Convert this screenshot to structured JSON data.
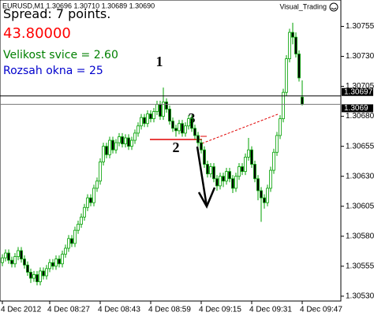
{
  "chart_data": {
    "type": "candlestick",
    "header": "EURUSD,M1  1.30696 1.30710 1.30689 1.30690",
    "watermark": "Visual_Trading",
    "info": [
      "Spread: 7 points.",
      "43.80000",
      "Velikost svice = 2.60",
      "Rozsah okna = 25"
    ],
    "info_colors": [
      "#000000",
      "#ff0000",
      "#008000",
      "#0000cc"
    ],
    "annotations": [
      "1",
      "2",
      "3"
    ],
    "bid": 1.3069,
    "ask": 1.30697,
    "up_color": "#ffffff",
    "down_color": "#000000",
    "wick_color": "#00a000",
    "categories": [
      "4 Dec 2012",
      null,
      null,
      null,
      null,
      null,
      null,
      null,
      null,
      null,
      null,
      null,
      null,
      null,
      null,
      "4 Dec 08:27",
      null,
      null,
      null,
      null,
      null,
      null,
      null,
      null,
      null,
      null,
      null,
      null,
      null,
      null,
      null,
      "4 Dec 08:43",
      null,
      null,
      null,
      null,
      null,
      null,
      null,
      null,
      null,
      null,
      null,
      null,
      null,
      null,
      null,
      "4 Dec 08:59",
      null,
      null,
      null,
      null,
      null,
      null,
      null,
      null,
      null,
      null,
      null,
      null,
      null,
      null,
      null,
      "4 Dec 09:15",
      null,
      null,
      null,
      null,
      null,
      null,
      null,
      null,
      null,
      null,
      null,
      null,
      null,
      null,
      null,
      "4 Dec 09:31",
      null,
      null,
      null,
      null,
      null,
      null,
      null,
      null,
      null,
      null,
      null,
      null,
      null,
      null,
      null,
      "4 Dec 09:47"
    ],
    "open": [
      1.30558,
      1.30562,
      1.30566,
      1.3056,
      1.30557,
      1.30563,
      1.30568,
      1.30561,
      1.30556,
      1.3055,
      1.30545,
      1.30548,
      1.30542,
      1.30551,
      1.30547,
      1.30553,
      1.30558,
      1.30555,
      1.30561,
      1.30557,
      1.30565,
      1.3057,
      1.30578,
      1.30574,
      1.30585,
      1.3059,
      1.30596,
      1.30604,
      1.30612,
      1.30608,
      1.3062,
      1.30626,
      1.30642,
      1.30655,
      1.30648,
      1.3066,
      1.30652,
      1.30658,
      1.30663,
      1.30657,
      1.30662,
      1.30655,
      1.3066,
      1.30666,
      1.30672,
      1.30679,
      1.30674,
      1.30682,
      1.30678,
      1.30684,
      1.3069,
      1.3068,
      1.30692,
      1.30686,
      1.30676,
      1.3067,
      1.30668,
      1.30674,
      1.30666,
      1.30672,
      1.30678,
      1.3067,
      1.30664,
      1.30658,
      1.30652,
      1.3064,
      1.30632,
      1.30638,
      1.30628,
      1.30622,
      1.3063,
      1.30626,
      1.30634,
      1.30628,
      1.3062,
      1.3063,
      1.30638,
      1.30634,
      1.30646,
      1.30652,
      1.3064,
      1.30628,
      1.30618,
      1.30612,
      1.30608,
      1.3062,
      1.30635,
      1.3065,
      1.30664,
      1.30678,
      1.307,
      1.30728,
      1.3075,
      1.30746,
      1.30732,
      1.30696
    ],
    "high": [
      1.30565,
      1.30569,
      1.30569,
      1.30563,
      1.30566,
      1.30571,
      1.30571,
      1.30564,
      1.30559,
      1.30553,
      1.30551,
      1.30551,
      1.30554,
      1.30554,
      1.30556,
      1.30561,
      1.30561,
      1.30564,
      1.30564,
      1.30568,
      1.30573,
      1.30581,
      1.30581,
      1.30588,
      1.30593,
      1.30599,
      1.30607,
      1.30615,
      1.30615,
      1.30623,
      1.30629,
      1.30645,
      1.30658,
      1.30658,
      1.30663,
      1.30663,
      1.30661,
      1.30666,
      1.30666,
      1.30665,
      1.30665,
      1.30663,
      1.30669,
      1.30675,
      1.30682,
      1.30682,
      1.30685,
      1.30685,
      1.30687,
      1.30693,
      1.30693,
      1.30704,
      1.30695,
      1.30689,
      1.30679,
      1.30673,
      1.30677,
      1.30677,
      1.30675,
      1.30681,
      1.30681,
      1.30673,
      1.30667,
      1.30661,
      1.30655,
      1.30643,
      1.30641,
      1.30641,
      1.30631,
      1.30633,
      1.30633,
      1.30637,
      1.30637,
      1.30631,
      1.30633,
      1.30641,
      1.30641,
      1.30649,
      1.30662,
      1.30655,
      1.30643,
      1.30631,
      1.30621,
      1.30615,
      1.30623,
      1.30638,
      1.30653,
      1.30667,
      1.30681,
      1.30703,
      1.30731,
      1.30753,
      1.30758,
      1.3075,
      1.30735,
      1.3071
    ],
    "low": [
      1.30555,
      1.30559,
      1.30557,
      1.30554,
      1.30554,
      1.3056,
      1.30558,
      1.30553,
      1.30547,
      1.30541,
      1.30542,
      1.30539,
      1.30539,
      1.30544,
      1.30544,
      1.3055,
      1.30552,
      1.30552,
      1.30554,
      1.30554,
      1.30562,
      1.30567,
      1.30571,
      1.30571,
      1.30582,
      1.30587,
      1.30593,
      1.30601,
      1.30605,
      1.30605,
      1.30617,
      1.30623,
      1.30639,
      1.30645,
      1.30645,
      1.30649,
      1.30649,
      1.30655,
      1.30654,
      1.30654,
      1.30652,
      1.30652,
      1.30657,
      1.30663,
      1.30669,
      1.30671,
      1.30671,
      1.30675,
      1.30675,
      1.30681,
      1.30677,
      1.30677,
      1.30683,
      1.30673,
      1.30667,
      1.30663,
      1.30665,
      1.30663,
      1.30663,
      1.30669,
      1.30667,
      1.30661,
      1.30655,
      1.30649,
      1.30637,
      1.30629,
      1.30629,
      1.30625,
      1.30618,
      1.30619,
      1.30621,
      1.30623,
      1.30625,
      1.30616,
      1.30617,
      1.30627,
      1.30631,
      1.30631,
      1.30643,
      1.30637,
      1.30625,
      1.3061,
      1.30592,
      1.30603,
      1.30605,
      1.30617,
      1.30632,
      1.30647,
      1.30661,
      1.30675,
      1.30697,
      1.30725,
      1.3074,
      1.30729,
      1.30709,
      1.30689
    ],
    "close": [
      1.30562,
      1.30566,
      1.3056,
      1.30557,
      1.30563,
      1.30568,
      1.30561,
      1.30556,
      1.3055,
      1.30545,
      1.30548,
      1.30542,
      1.30551,
      1.30547,
      1.30553,
      1.30558,
      1.30555,
      1.30561,
      1.30557,
      1.30565,
      1.3057,
      1.30578,
      1.30574,
      1.30585,
      1.3059,
      1.30596,
      1.30604,
      1.30612,
      1.30608,
      1.3062,
      1.30626,
      1.30642,
      1.30655,
      1.30648,
      1.3066,
      1.30652,
      1.30658,
      1.30663,
      1.30657,
      1.30662,
      1.30655,
      1.3066,
      1.30666,
      1.30672,
      1.30679,
      1.30674,
      1.30682,
      1.30678,
      1.30684,
      1.3069,
      1.3068,
      1.30692,
      1.30686,
      1.30676,
      1.3067,
      1.30668,
      1.30674,
      1.30666,
      1.30672,
      1.30678,
      1.3067,
      1.30664,
      1.30658,
      1.30652,
      1.3064,
      1.30632,
      1.30638,
      1.30628,
      1.30622,
      1.3063,
      1.30626,
      1.30634,
      1.30628,
      1.3062,
      1.3063,
      1.30638,
      1.30634,
      1.30646,
      1.30652,
      1.3064,
      1.30628,
      1.30618,
      1.30612,
      1.30608,
      1.3062,
      1.30635,
      1.3065,
      1.30664,
      1.30678,
      1.307,
      1.30728,
      1.3075,
      1.30746,
      1.30732,
      1.30712,
      1.3069
    ],
    "ylim": [
      1.30524,
      1.30777
    ],
    "yticks": [
      {
        "value": 1.3053,
        "label": "1.30530"
      },
      1.30555,
      {
        "value": 1.3058,
        "label": "1.30580"
      },
      1.30605,
      {
        "value": 1.3063,
        "label": "1.30630"
      },
      1.30655,
      {
        "value": 1.3068,
        "label": "1.30680"
      },
      1.30705,
      {
        "value": 1.3073,
        "label": "1.30730"
      },
      1.30755
    ]
  }
}
